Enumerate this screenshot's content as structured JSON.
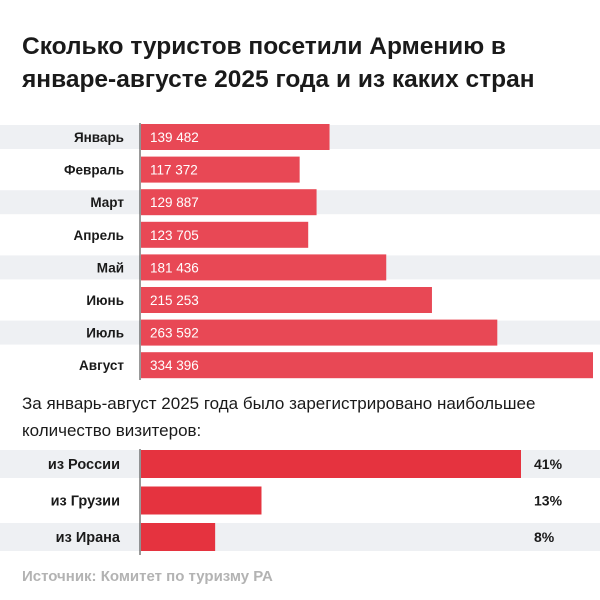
{
  "colors": {
    "month_bar": "#e84855",
    "country_bar": "#e5333f",
    "band": "#eef0f3",
    "axis": "#333333"
  },
  "title": "Сколько туристов посетили Армению в январе-августе 2025 года и из каких стран",
  "subtitle": "За январь-август 2025 года было зарегистрировано наибольшее количество визитеров:",
  "source": "Источник:  Комитет по туризму РА",
  "chart_data": [
    {
      "type": "bar",
      "orientation": "horizontal",
      "categories": [
        "Январь",
        "Февраль",
        "Март",
        "Апрель",
        "Май",
        "Июнь",
        "Июль",
        "Август"
      ],
      "values": [
        139482,
        117372,
        129887,
        123705,
        181436,
        215253,
        263592,
        334396
      ],
      "data_labels": [
        "139 482",
        "117 372",
        "129 887",
        "123 705",
        "181 436",
        "215 253",
        "263 592",
        "334 396"
      ],
      "xlim": [
        0,
        334396
      ]
    },
    {
      "type": "bar",
      "orientation": "horizontal",
      "categories": [
        "из России",
        "из Грузии",
        "из Ирана"
      ],
      "values": [
        41,
        13,
        8
      ],
      "data_labels": [
        "41%",
        "13%",
        "8%"
      ],
      "xlim": [
        0,
        41
      ]
    }
  ]
}
